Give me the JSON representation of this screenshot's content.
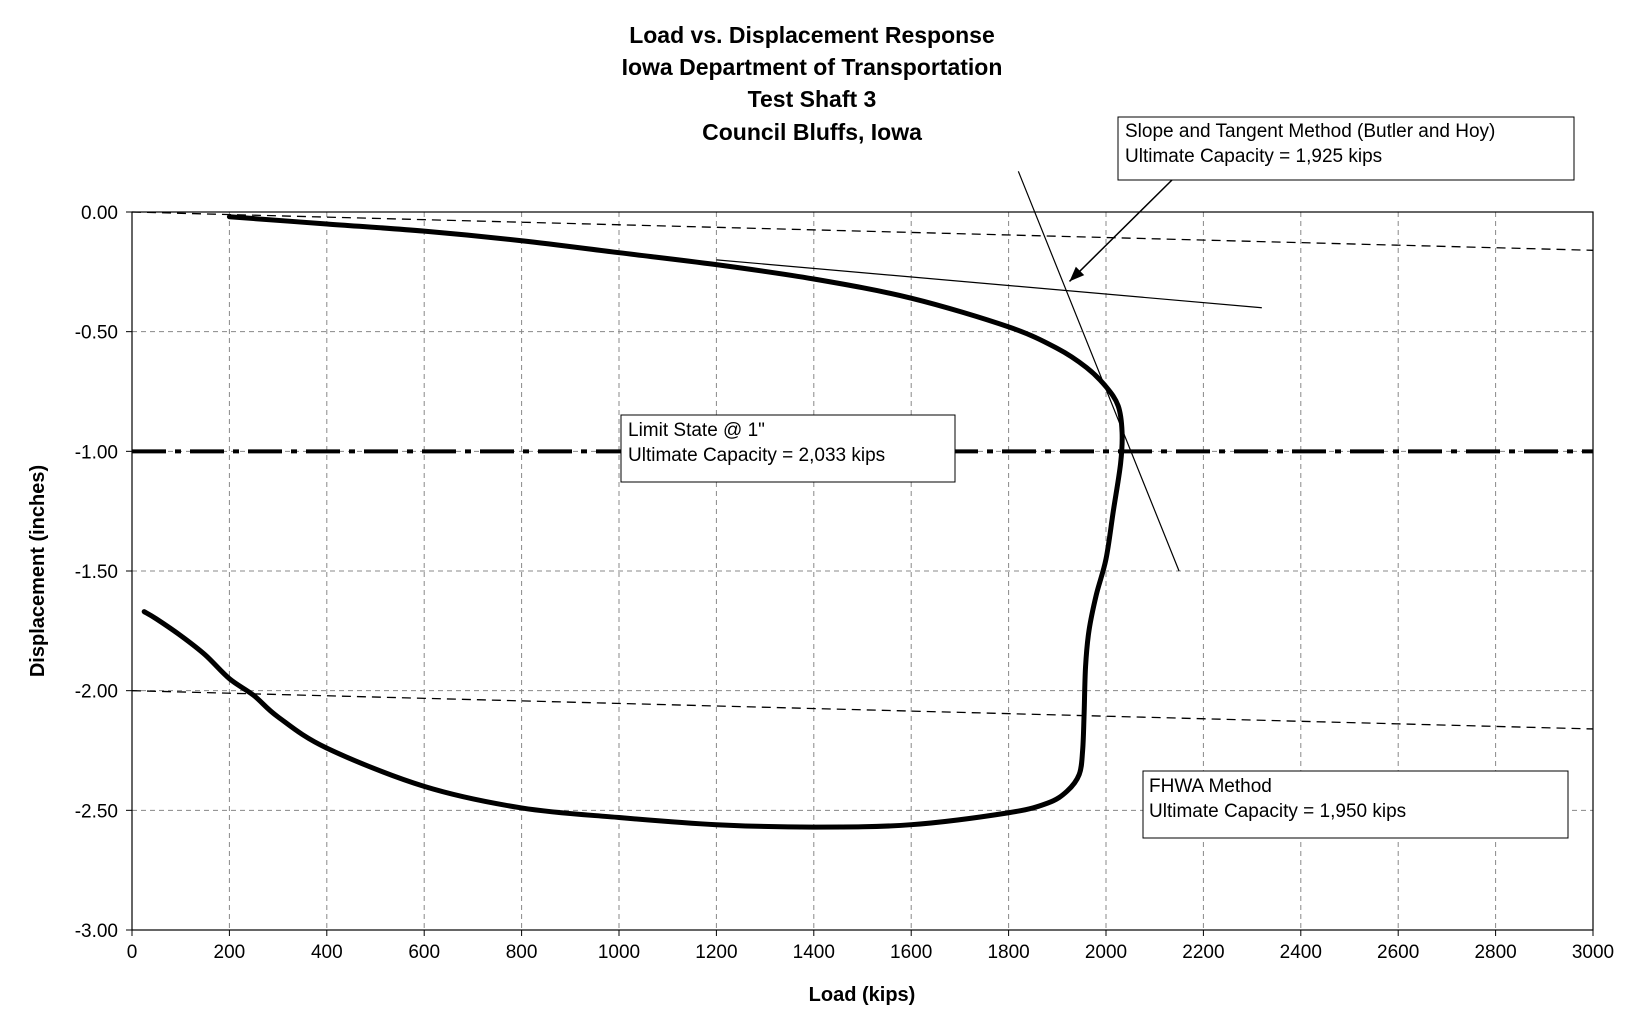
{
  "chart_data": {
    "type": "line",
    "title": [
      "Load vs. Displacement Response",
      "Iowa Department of Transportation",
      "Test Shaft 3",
      "Council Bluffs, Iowa"
    ],
    "xlabel": "Load (kips)",
    "ylabel": "Displacement (inches)",
    "xlim": [
      0,
      3000
    ],
    "ylim": [
      -3,
      0
    ],
    "x_ticks": [
      0,
      200,
      400,
      600,
      800,
      1000,
      1200,
      1400,
      1600,
      1800,
      2000,
      2200,
      2400,
      2600,
      2800,
      3000
    ],
    "y_ticks": [
      0,
      -0.5,
      -1,
      -1.5,
      -2,
      -2.5,
      -3
    ],
    "x_tick_labels": [
      "0",
      "200",
      "400",
      "600",
      "800",
      "1000",
      "1200",
      "1400",
      "1600",
      "1800",
      "2000",
      "2200",
      "2400",
      "2600",
      "2800",
      "3000"
    ],
    "y_tick_labels": [
      "0.00",
      "-0.50",
      "-1.00",
      "-1.50",
      "-2.00",
      "-2.50",
      "-3.00"
    ],
    "grid": true,
    "series": [
      {
        "style": "thick-solid",
        "x": [
          200,
          400,
          600,
          800,
          1000,
          1200,
          1400,
          1600,
          1800,
          1900,
          1960,
          2000,
          2025,
          2033,
          2030,
          2015,
          2000,
          1980,
          1965,
          1958,
          1955,
          1952,
          1945,
          1920,
          1880,
          1800,
          1600,
          1400,
          1200,
          1000,
          800,
          600,
          400,
          300,
          250,
          200,
          150,
          100,
          50,
          25
        ],
        "y": [
          -0.02,
          -0.05,
          -0.08,
          -0.12,
          -0.17,
          -0.22,
          -0.28,
          -0.36,
          -0.48,
          -0.57,
          -0.65,
          -0.73,
          -0.81,
          -0.92,
          -1.05,
          -1.25,
          -1.45,
          -1.6,
          -1.75,
          -1.9,
          -2.1,
          -2.25,
          -2.35,
          -2.42,
          -2.47,
          -2.51,
          -2.56,
          -2.57,
          -2.56,
          -2.53,
          -2.49,
          -2.4,
          -2.24,
          -2.11,
          -2.02,
          -1.95,
          -1.85,
          -1.77,
          -1.7,
          -1.67
        ]
      },
      {
        "style": "dashed",
        "x": [
          0,
          3000
        ],
        "y": [
          0,
          -0.16
        ]
      },
      {
        "style": "dashed",
        "x": [
          0,
          3000
        ],
        "y": [
          -2,
          -2.16
        ]
      },
      {
        "style": "dash-dot-thick",
        "x": [
          0,
          3000
        ],
        "y": [
          -1,
          -1
        ]
      },
      {
        "style": "thin-solid",
        "x": [
          1200,
          2320
        ],
        "y": [
          -0.2,
          -0.4
        ]
      },
      {
        "style": "thin-solid",
        "x": [
          1820,
          2150
        ],
        "y": [
          0.17,
          -1.5
        ]
      }
    ],
    "annotations": [
      {
        "lines": [
          "Slope and Tangent Method (Butler and Hoy)",
          "Ultimate Capacity = 1,925 kips"
        ],
        "arrow_to": {
          "x": 1925,
          "y": -0.29
        }
      },
      {
        "lines": [
          "Limit State @ 1\"",
          "Ultimate Capacity = 2,033 kips"
        ]
      },
      {
        "lines": [
          "FHWA Method",
          "Ultimate Capacity = 1,950 kips"
        ]
      }
    ]
  }
}
